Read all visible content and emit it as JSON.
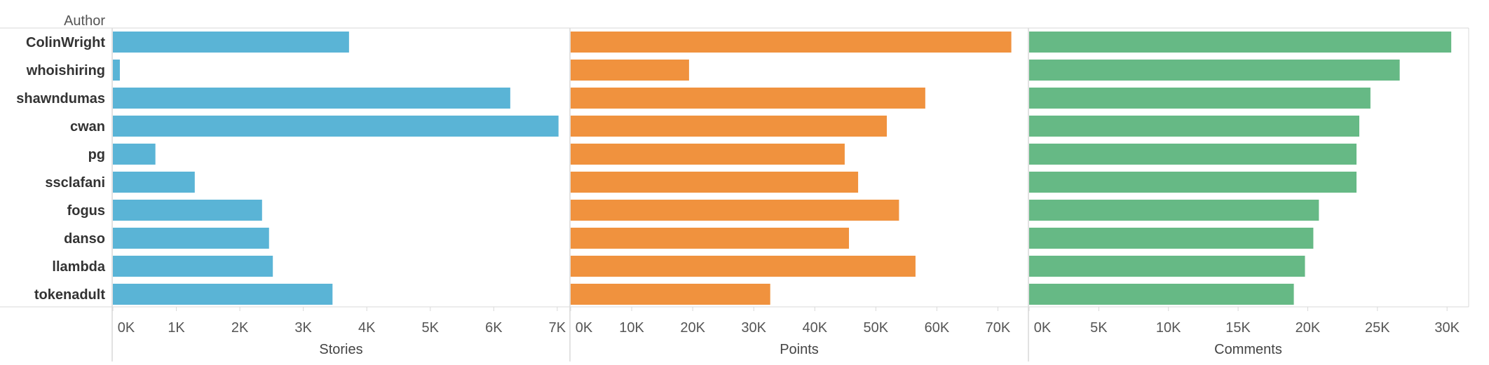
{
  "chart_data": {
    "type": "bar",
    "orientation": "horizontal",
    "row_header": "Author",
    "categories": [
      "ColinWright",
      "whoishiring",
      "shawndumas",
      "cwan",
      "pg",
      "ssclafani",
      "fogus",
      "danso",
      "llambda",
      "tokenadult"
    ],
    "panels": [
      {
        "measure": "Stories",
        "xlabel": "Stories",
        "color": "#5ab4d6",
        "xlim": [
          0,
          7200
        ],
        "ticks": [
          0,
          1000,
          2000,
          3000,
          4000,
          5000,
          6000,
          7000
        ],
        "tick_labels": [
          "0K",
          "1K",
          "2K",
          "3K",
          "4K",
          "5K",
          "6K",
          "7K"
        ],
        "values": [
          3720,
          110,
          6260,
          7020,
          670,
          1290,
          2350,
          2460,
          2520,
          3460
        ]
      },
      {
        "measure": "Points",
        "xlabel": "Points",
        "color": "#f0923e",
        "xlim": [
          0,
          75000
        ],
        "ticks": [
          0,
          10000,
          20000,
          30000,
          40000,
          50000,
          60000,
          70000
        ],
        "tick_labels": [
          "0K",
          "10K",
          "20K",
          "30K",
          "40K",
          "50K",
          "60K",
          "70K"
        ],
        "values": [
          72200,
          19400,
          58100,
          51800,
          44900,
          47100,
          53800,
          45600,
          56500,
          32700
        ]
      },
      {
        "measure": "Comments",
        "xlabel": "Comments",
        "color": "#66b985",
        "xlim": [
          0,
          31500
        ],
        "ticks": [
          0,
          5000,
          10000,
          15000,
          20000,
          25000,
          30000
        ],
        "tick_labels": [
          "0K",
          "5K",
          "10K",
          "15K",
          "20K",
          "25K",
          "30K"
        ],
        "values": [
          30300,
          26600,
          24500,
          23700,
          23500,
          23500,
          20800,
          20400,
          19800,
          19000
        ]
      }
    ],
    "grid": false,
    "legend": "none"
  }
}
